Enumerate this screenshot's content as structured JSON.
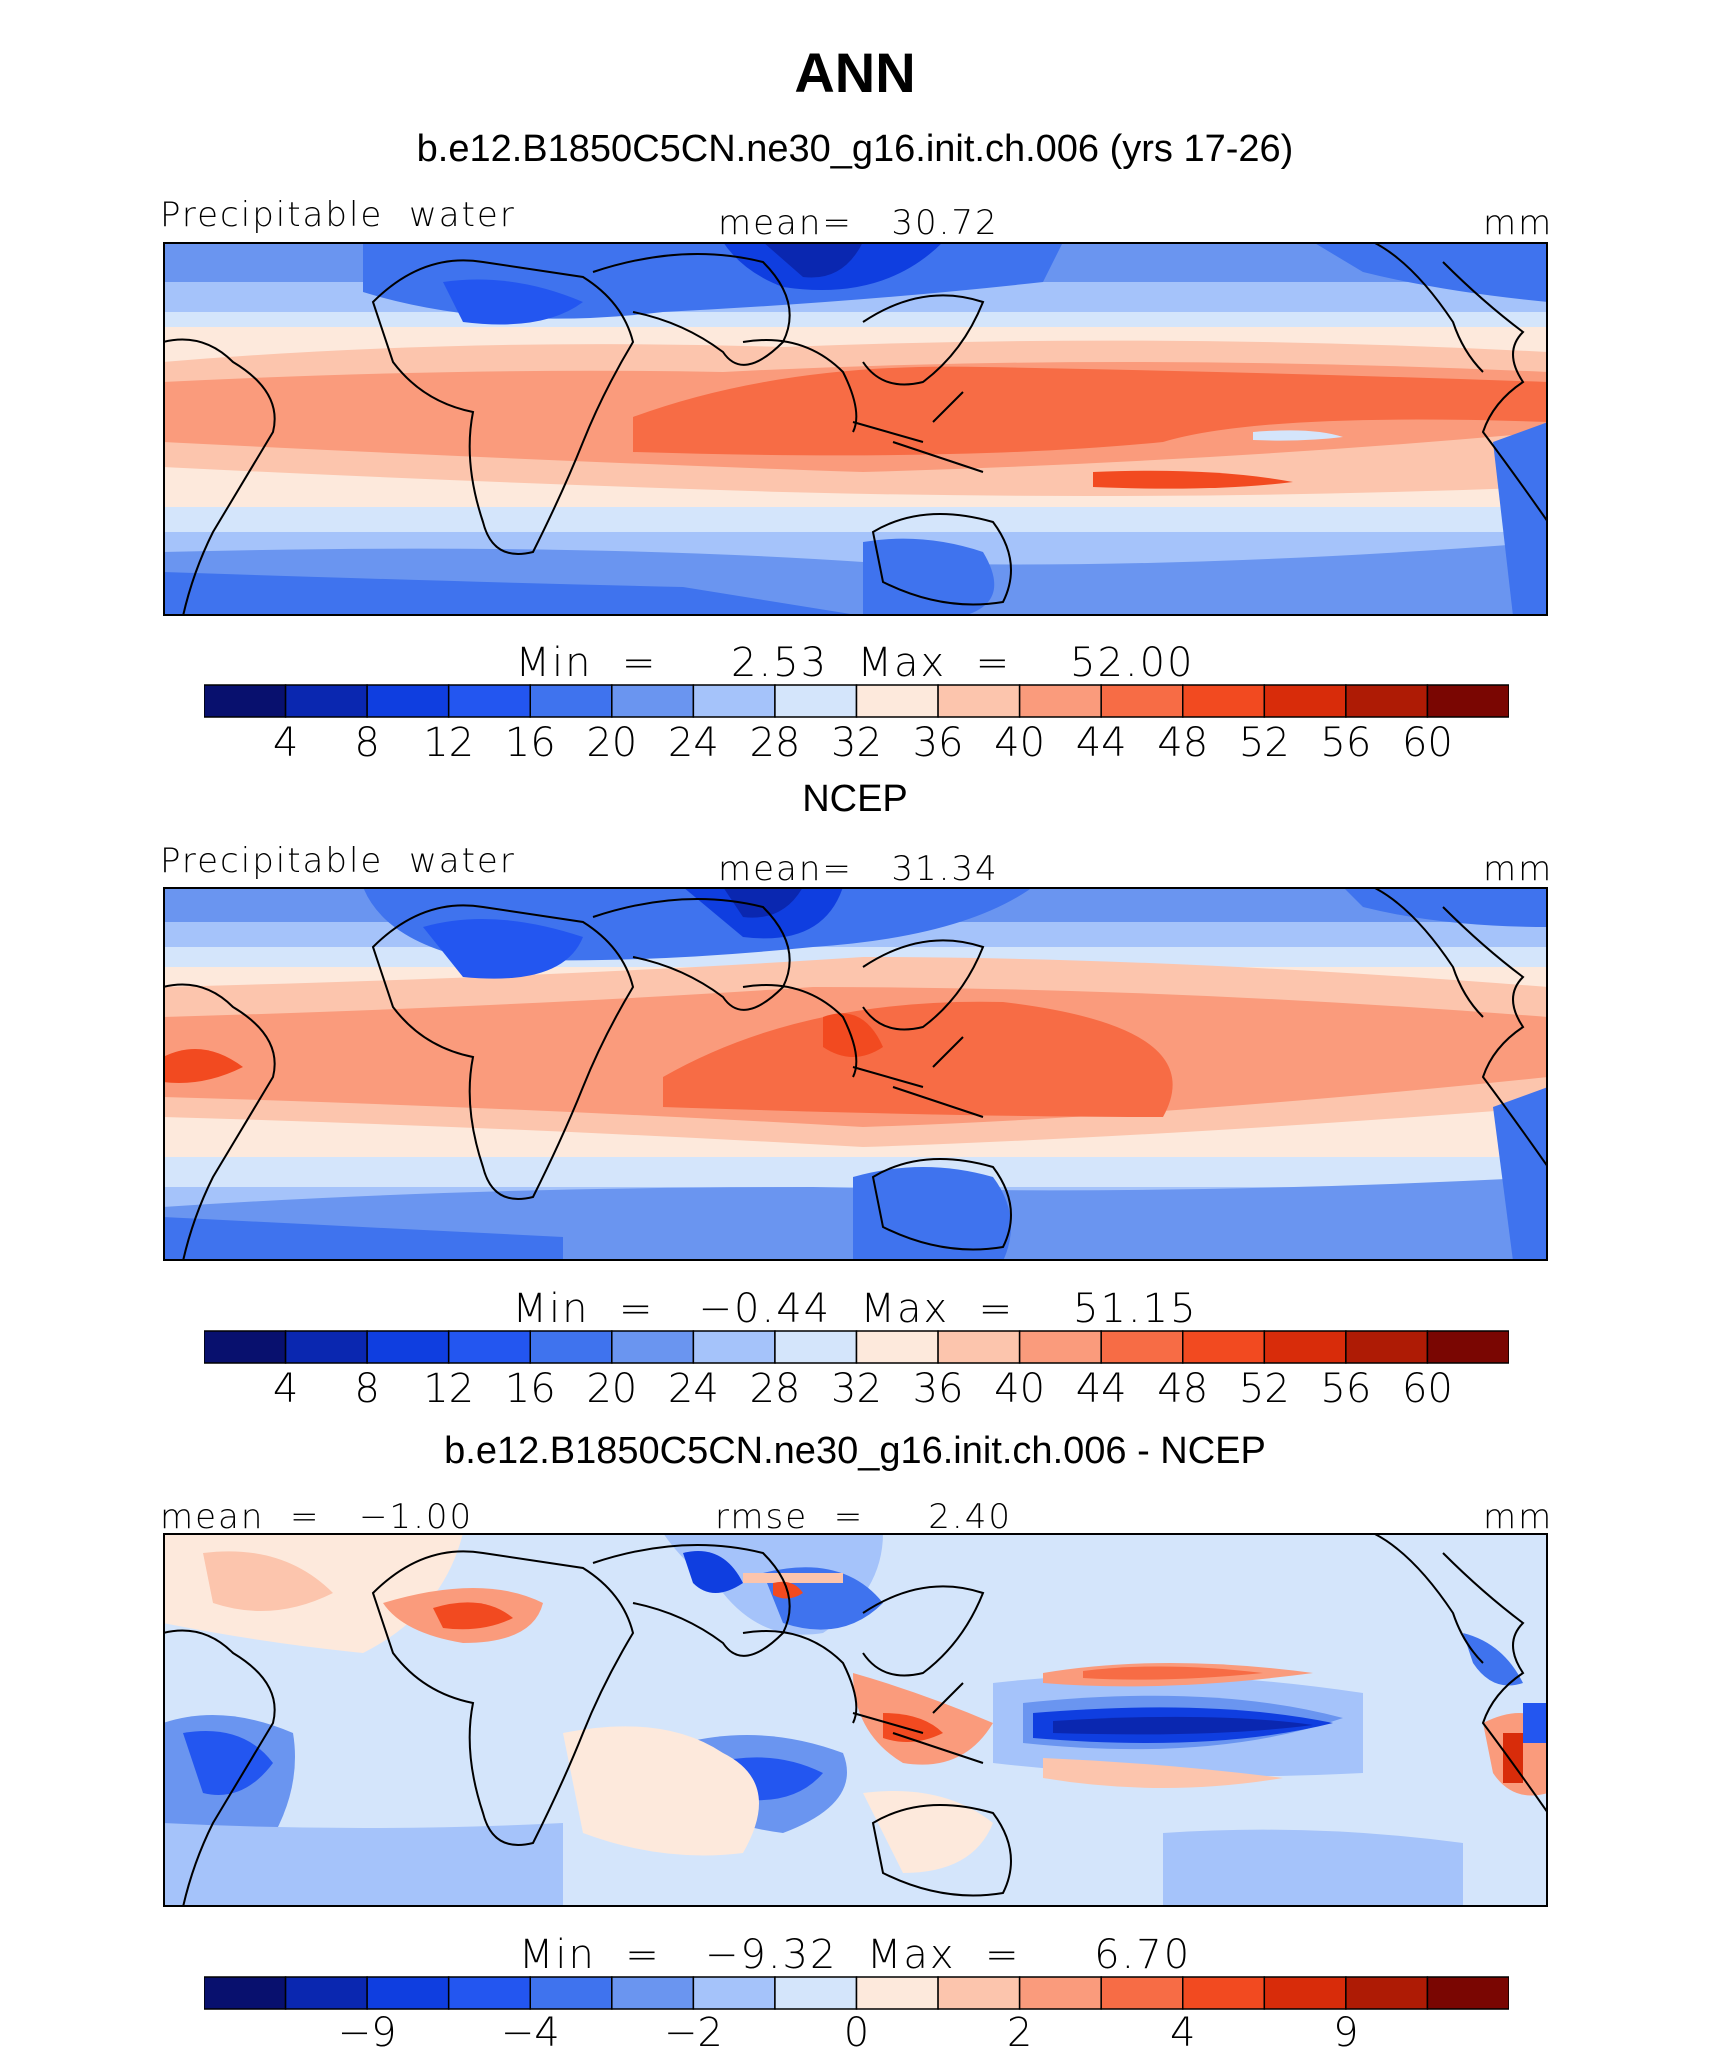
{
  "title": "ANN",
  "panels": [
    {
      "subtitle": "b.e12.B1850C5CN.ne30_g16.init.ch.006 (yrs 17-26)",
      "left_label": "Precipitable  water",
      "center_label": "mean=   30.72",
      "unit": "mm",
      "minmax": "Min  =     2.53  Max  =    52.00",
      "tick_labels": [
        "4",
        "8",
        "12",
        "16",
        "20",
        "24",
        "28",
        "32",
        "36",
        "40",
        "44",
        "48",
        "52",
        "56",
        "60"
      ]
    },
    {
      "subtitle": "NCEP",
      "left_label": "Precipitable  water",
      "center_label": "mean=   31.34",
      "unit": "mm",
      "minmax": "Min  =   −0.44  Max  =    51.15",
      "tick_labels": [
        "4",
        "8",
        "12",
        "16",
        "20",
        "24",
        "28",
        "32",
        "36",
        "40",
        "44",
        "48",
        "52",
        "56",
        "60"
      ]
    },
    {
      "subtitle": "b.e12.B1850C5CN.ne30_g16.init.ch.006 - NCEP",
      "left_label": "mean  =   −1.00",
      "center_label": "rmse  =     2.40",
      "unit": "mm",
      "minmax": "Min  =   −9.32  Max  =     6.70",
      "tick_labels": [
        "−9",
        "−4",
        "−2",
        "0",
        "2",
        "4",
        "9"
      ]
    }
  ],
  "colors": [
    "#08106e",
    "#0a27b0",
    "#0f3ee0",
    "#2356f0",
    "#3f73ee",
    "#6a95f0",
    "#a5c3fa",
    "#d4e5fb",
    "#fde9dc",
    "#fcc5ad",
    "#fa9b7c",
    "#f76c45",
    "#f24a20",
    "#d82c0a",
    "#ae1b05",
    "#7a0602"
  ]
}
